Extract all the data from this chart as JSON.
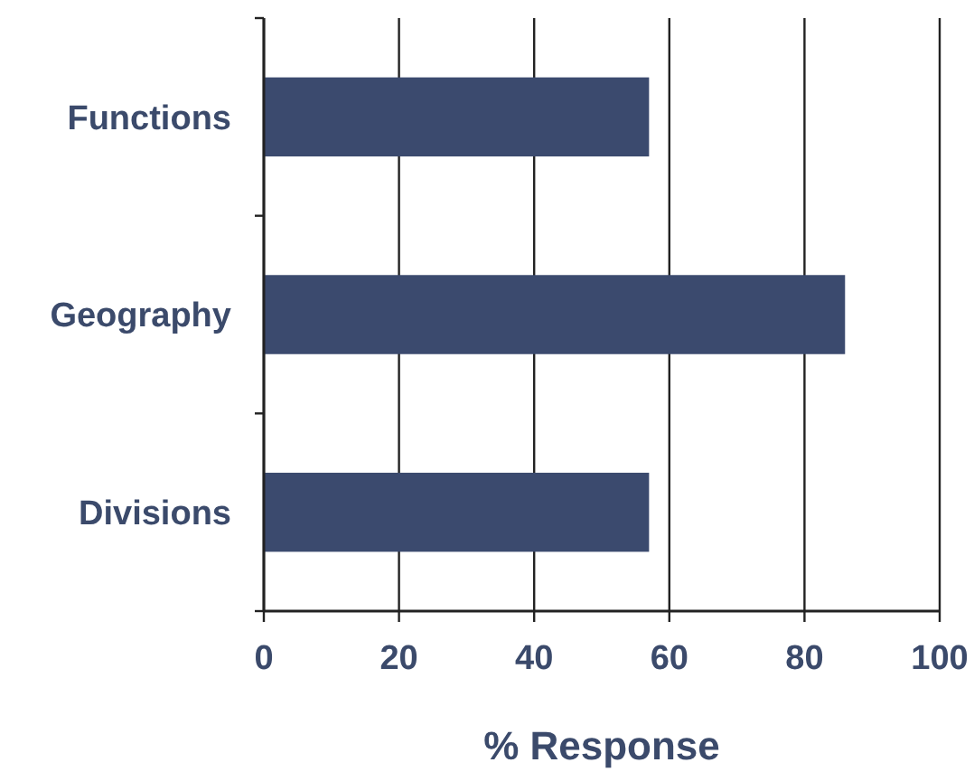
{
  "chart_data": {
    "type": "bar",
    "orientation": "horizontal",
    "xlabel": "% Response",
    "categories": [
      "Functions",
      "Geography",
      "Divisions"
    ],
    "values": [
      57,
      86,
      57
    ],
    "color": "#3b4a6e",
    "xlim": [
      0,
      100
    ],
    "xticks": [
      0,
      20,
      40,
      60,
      80,
      100
    ],
    "grid": "x"
  }
}
